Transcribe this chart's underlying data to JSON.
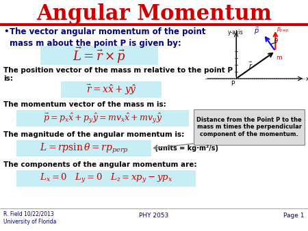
{
  "title": "Angular Momentum",
  "title_color": "#CC0000",
  "title_fontsize": 22,
  "bg_color": "#FFFFFF",
  "header_line_color": "#CC0000",
  "bullet_color": "#000080",
  "bullet_fontsize": 8.5,
  "eq1_latex": "$\\vec{L} = \\vec{r} \\times \\vec{p}$",
  "eq1_fontsize": 13,
  "pos_vector_label": "The position vector of the mass m relative to the point P\nis:",
  "eq2_latex": "$\\vec{r} = x\\hat{x} + y\\hat{y}$",
  "eq2_fontsize": 10,
  "momentum_label": "The momentum vector of the mass m is:",
  "eq3_latex": "$\\vec{p} = p_x\\hat{x} + p_y\\hat{y} = mv_x\\hat{x} + mv_y\\hat{y}$",
  "eq3_fontsize": 9,
  "magnitude_label": "The magnitude of the angular momentum is:",
  "eq4_latex": "$L = rp\\sin\\theta = rp_{perp}$",
  "eq4_fontsize": 10,
  "units_text": " (units = kg·m²/s)",
  "components_label": "The components of the angular momentum are:",
  "eq5_latex": "$L_x = 0 \\quad L_y = 0 \\quad L_z = xp_y - yp_x$",
  "eq5_fontsize": 9.5,
  "box_color": "#C8EEF5",
  "text_fontsize": 7.5,
  "footer_left": "R. Field 10/22/2013\nUniversity of Florida",
  "footer_center": "PHY 2053",
  "footer_right": "Page 1",
  "footer_color": "#000080",
  "annotation_text": "Distance from the Point P to the\nmass m times the perpendicular\ncomponent of the momentum.",
  "annotation_bg": "#DCDCDC",
  "annotation_fontsize": 6.0
}
